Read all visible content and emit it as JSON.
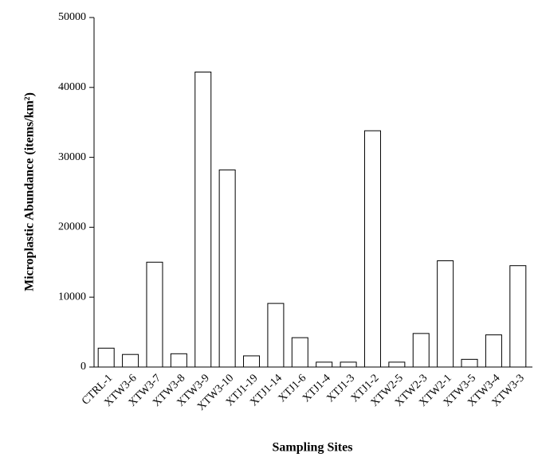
{
  "chart_data": {
    "type": "bar",
    "x_label": "Sampling Sites",
    "y_label": "Microplastic Abundance (items/km²)",
    "categories": [
      "CTRL-1",
      "XTW3-6",
      "XTW3-7",
      "XTW3-8",
      "XTW3-9",
      "XTW3-10",
      "XTJ1-19",
      "XTJ1-14",
      "XTJ1-6",
      "XTJ1-4",
      "XTJ1-3",
      "XTJ1-2",
      "XTW2-5",
      "XTW2-3",
      "XTW2-1",
      "XTW3-5",
      "XTW3-4",
      "XTW3-3"
    ],
    "values": [
      2700,
      1800,
      15000,
      1900,
      42200,
      28200,
      1600,
      9100,
      4200,
      700,
      700,
      33800,
      700,
      4800,
      15200,
      1100,
      4600,
      14500
    ],
    "color": "#ffffff",
    "ylim": [
      0,
      50000
    ],
    "yticks": [
      0,
      10000,
      20000,
      30000,
      40000,
      50000
    ],
    "grid": false
  }
}
